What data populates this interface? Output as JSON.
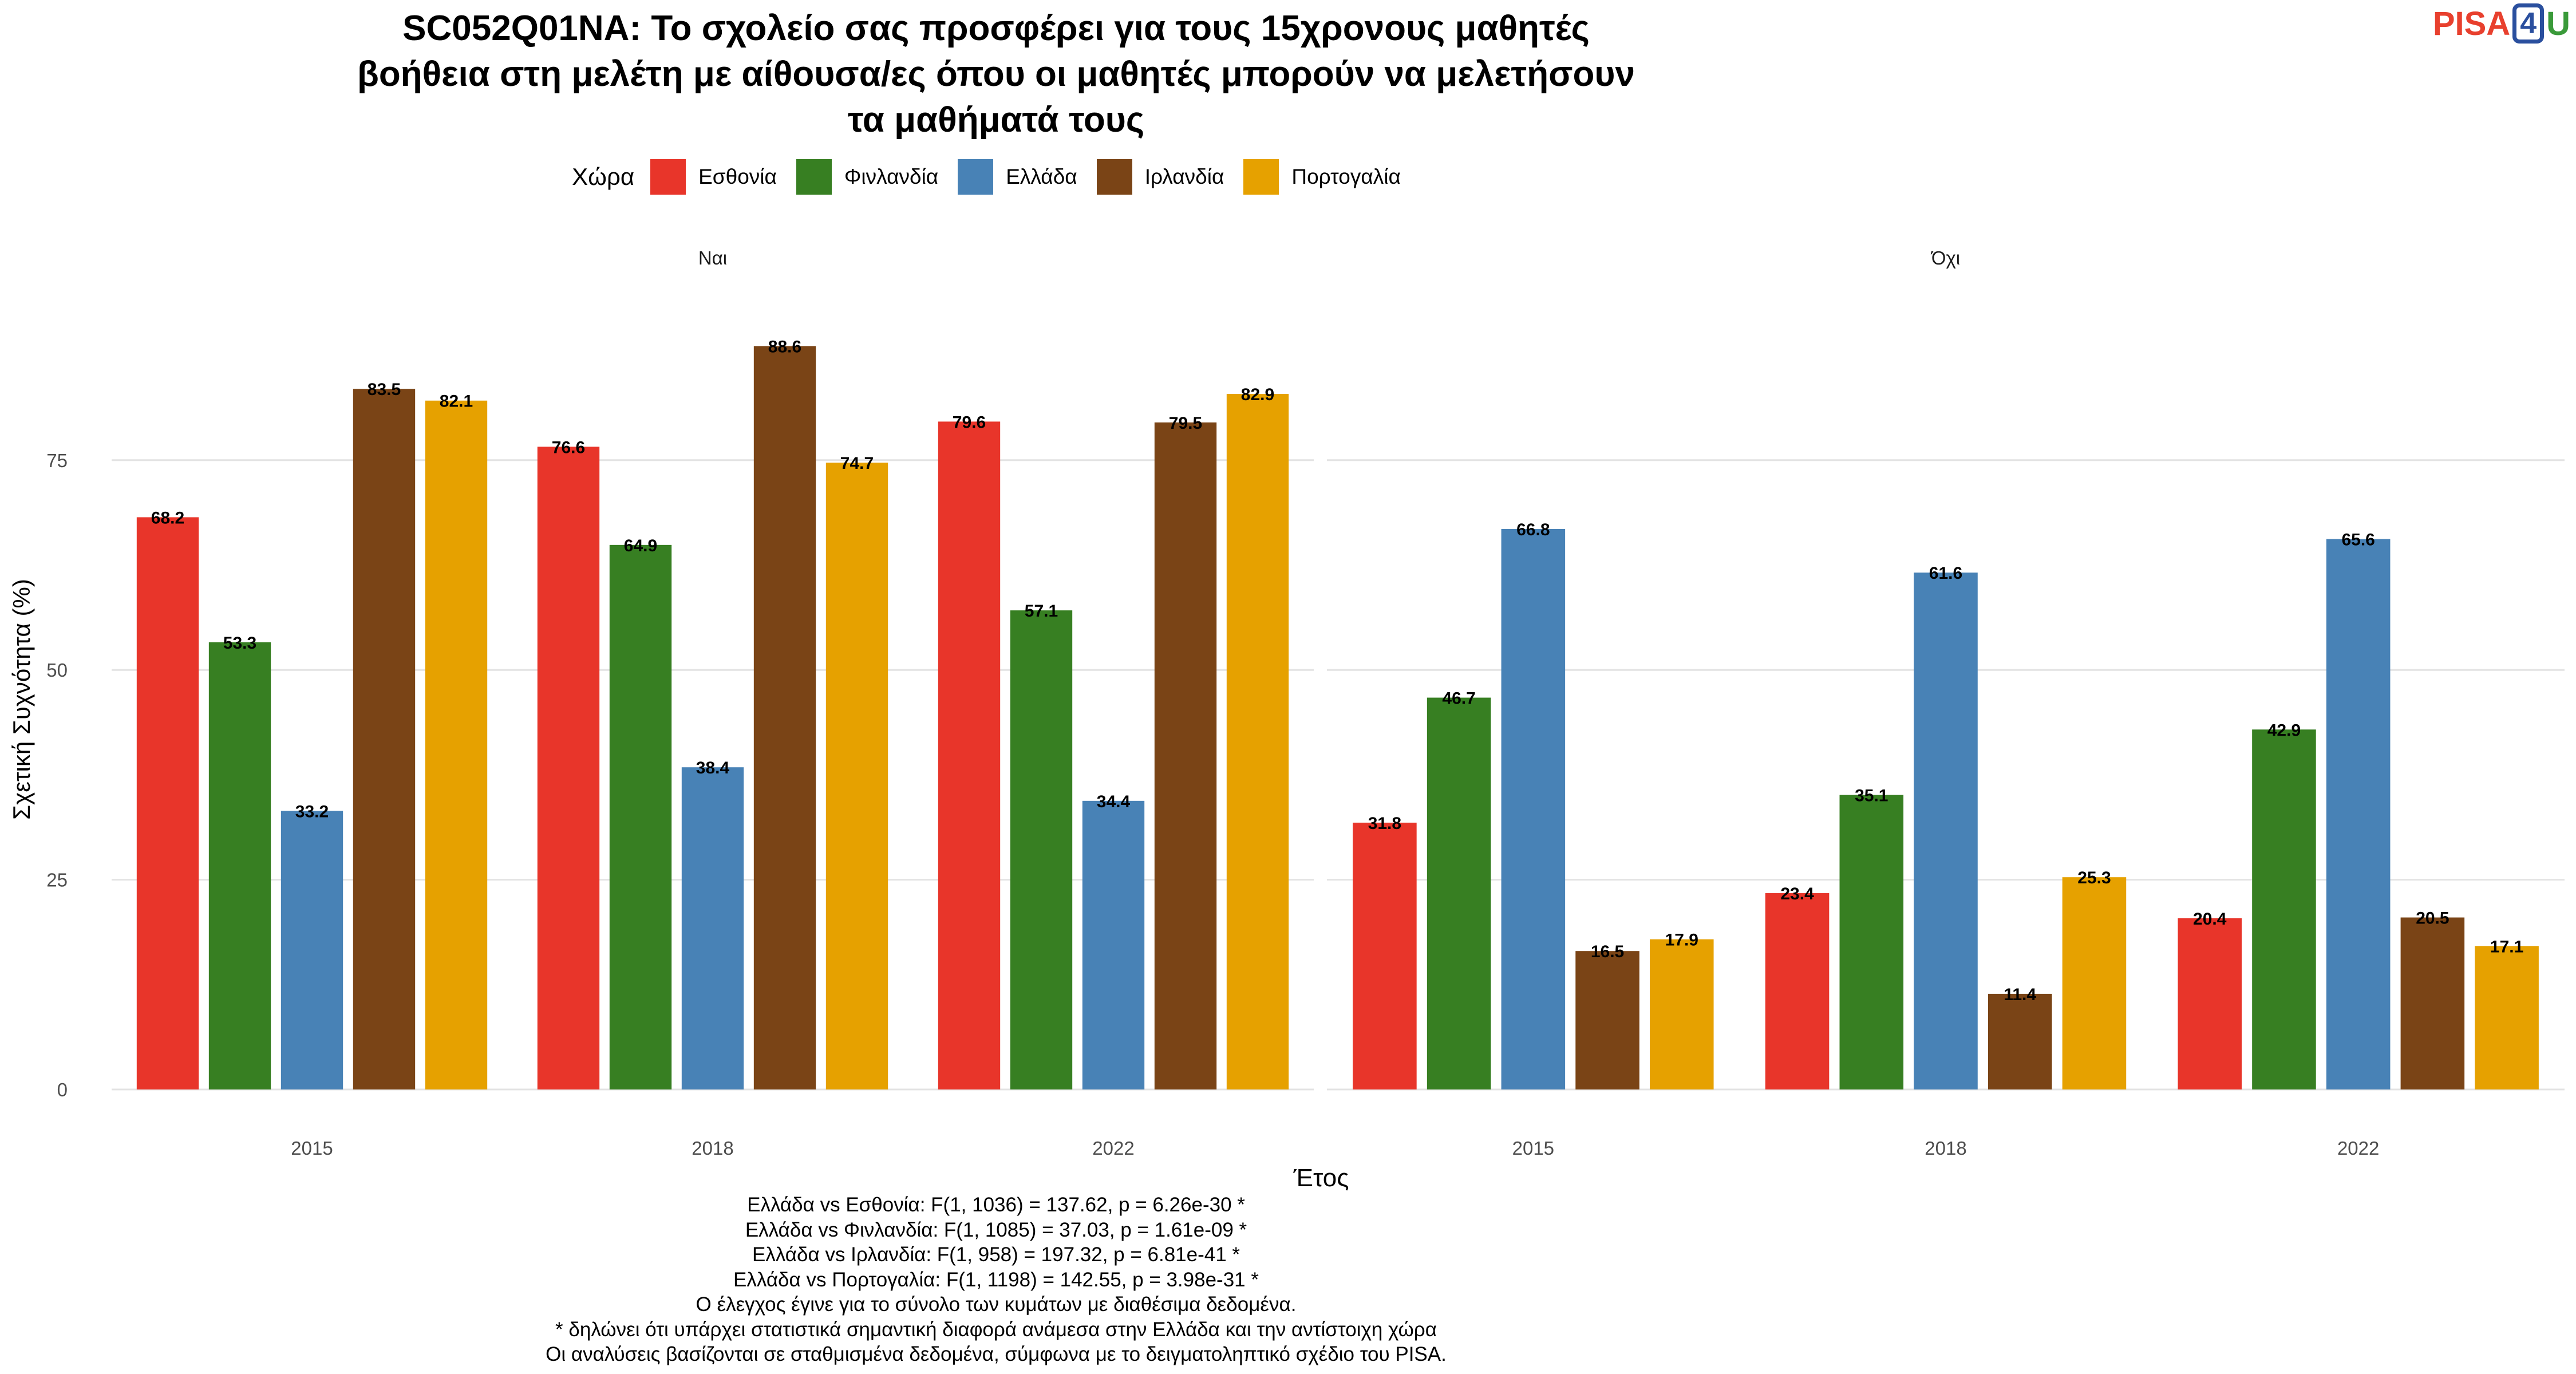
{
  "title_lines": [
    "SC052Q01NA: Το σχολείο σας προσφέρει για τους 15χρονους μαθητές",
    "βοήθεια στη μελέτη με αίθουσα/ες όπου οι μαθητές μπορούν να μελετήσουν",
    "τα μαθήματά τους"
  ],
  "logo": {
    "part1": "PISA",
    "part2": "4",
    "part3": "U"
  },
  "legend": {
    "title": "Χώρα",
    "items": [
      {
        "label": "Εσθονία",
        "color": "#e8352a"
      },
      {
        "label": "Φινλανδία",
        "color": "#377f22"
      },
      {
        "label": "Ελλάδα",
        "color": "#4882b6"
      },
      {
        "label": "Ιρλανδία",
        "color": "#7a4416"
      },
      {
        "label": "Πορτογαλία",
        "color": "#e6a100"
      }
    ]
  },
  "chart_data": {
    "type": "bar",
    "xlabel": "Έτος",
    "ylabel": "Σχετική Συχνότητα (%)",
    "ylim": [
      0,
      93
    ],
    "yticks": [
      0,
      25,
      50,
      75
    ],
    "grid": true,
    "legend_position": "top",
    "categories": [
      "2015",
      "2018",
      "2022"
    ],
    "series_names": [
      "Εσθονία",
      "Φινλανδία",
      "Ελλάδα",
      "Ιρλανδία",
      "Πορτογαλία"
    ],
    "panels": [
      {
        "label": "Ναι",
        "series": [
          {
            "name": "Εσθονία",
            "values": [
              68.2,
              76.6,
              79.6
            ]
          },
          {
            "name": "Φινλανδία",
            "values": [
              53.3,
              64.9,
              57.1
            ]
          },
          {
            "name": "Ελλάδα",
            "values": [
              33.2,
              38.4,
              34.4
            ]
          },
          {
            "name": "Ιρλανδία",
            "values": [
              83.5,
              88.6,
              79.5
            ]
          },
          {
            "name": "Πορτογαλία",
            "values": [
              82.1,
              74.7,
              82.9
            ]
          }
        ]
      },
      {
        "label": "Όχι",
        "series": [
          {
            "name": "Εσθονία",
            "values": [
              31.8,
              23.4,
              20.4
            ]
          },
          {
            "name": "Φινλανδία",
            "values": [
              46.7,
              35.1,
              42.9
            ]
          },
          {
            "name": "Ελλάδα",
            "values": [
              66.8,
              61.6,
              65.6
            ]
          },
          {
            "name": "Ιρλανδία",
            "values": [
              16.5,
              11.4,
              20.5
            ]
          },
          {
            "name": "Πορτογαλία",
            "values": [
              17.9,
              25.3,
              17.1
            ]
          }
        ]
      }
    ]
  },
  "footer_lines": [
    "Ελλάδα vs Εσθονία: F(1, 1036) = 137.62, p = 6.26e-30 *",
    "Ελλάδα vs Φινλανδία: F(1, 1085) = 37.03, p = 1.61e-09 *",
    "Ελλάδα vs Ιρλανδία: F(1, 958) = 197.32, p = 6.81e-41 *",
    "Ελλάδα vs Πορτογαλία: F(1, 1198) = 142.55, p = 3.98e-31 *",
    "Ο έλεγχος έγινε για το σύνολο των κυμάτων με διαθέσιμα δεδομένα.",
    "* δηλώνει ότι υπάρχει στατιστικά σημαντική διαφορά ανάμεσα στην Ελλάδα και την αντίστοιχη χώρα",
    "Οι αναλύσεις βασίζονται σε σταθμισμένα δεδομένα, σύμφωνα με το δειγματοληπτικό σχέδιο του PISA."
  ]
}
